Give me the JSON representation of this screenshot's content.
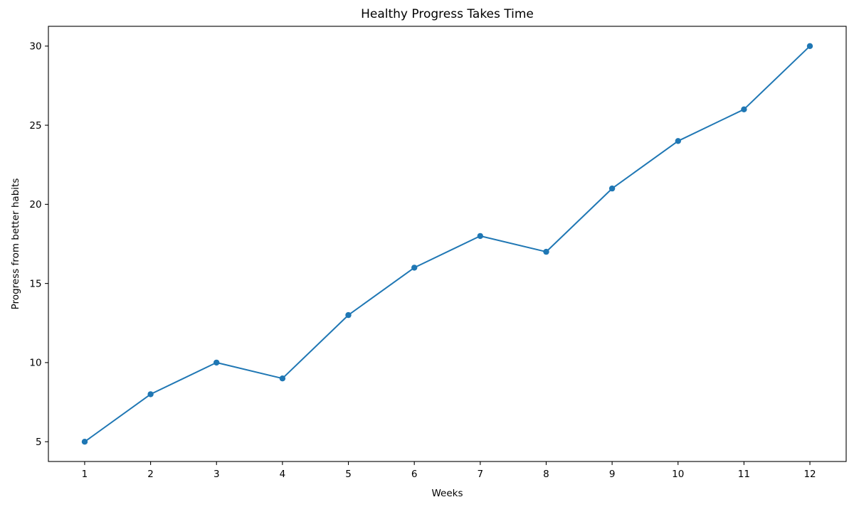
{
  "chart_data": {
    "type": "line",
    "title": "Healthy Progress Takes Time",
    "xlabel": "Weeks",
    "ylabel": "Progress from better habits",
    "x": [
      1,
      2,
      3,
      4,
      5,
      6,
      7,
      8,
      9,
      10,
      11,
      12
    ],
    "values": [
      5,
      8,
      10,
      9,
      13,
      16,
      18,
      17,
      21,
      24,
      26,
      30
    ],
    "x_ticks": [
      1,
      2,
      3,
      4,
      5,
      6,
      7,
      8,
      9,
      10,
      11,
      12
    ],
    "y_ticks": [
      5,
      10,
      15,
      20,
      25,
      30
    ],
    "xlim": [
      0.45,
      12.55
    ],
    "ylim": [
      3.75,
      31.25
    ],
    "grid": false,
    "legend_position": "none",
    "line_color": "#1f77b4",
    "marker": "circle",
    "axis_color": "#000000",
    "background_color": "#ffffff"
  }
}
